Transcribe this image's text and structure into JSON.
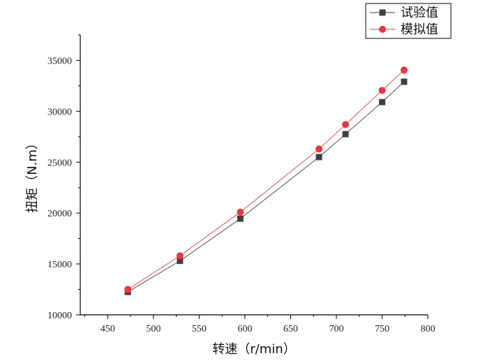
{
  "chart_data": {
    "type": "line",
    "title": "",
    "xlabel": "转速（r/min）",
    "ylabel": "扭矩（N.m）",
    "xlim": [
      420,
      800
    ],
    "ylim": [
      10000,
      37500
    ],
    "xticks": [
      450,
      500,
      550,
      600,
      650,
      700,
      750,
      800
    ],
    "yticks": [
      10000,
      15000,
      20000,
      25000,
      30000,
      35000
    ],
    "legend_position": "top-right",
    "grid": false,
    "series": [
      {
        "name": "试验值",
        "marker": "square",
        "color": "#404040",
        "x": [
          472,
          529,
          595,
          681,
          710,
          750,
          774
        ],
        "y": [
          12250,
          15300,
          19450,
          25500,
          27750,
          30900,
          32900
        ]
      },
      {
        "name": "模拟值",
        "marker": "circle",
        "color": "#e8383d",
        "x": [
          472,
          529,
          595,
          681,
          710,
          750,
          774
        ],
        "y": [
          12500,
          15800,
          20100,
          26300,
          28700,
          32050,
          34050
        ]
      }
    ]
  }
}
